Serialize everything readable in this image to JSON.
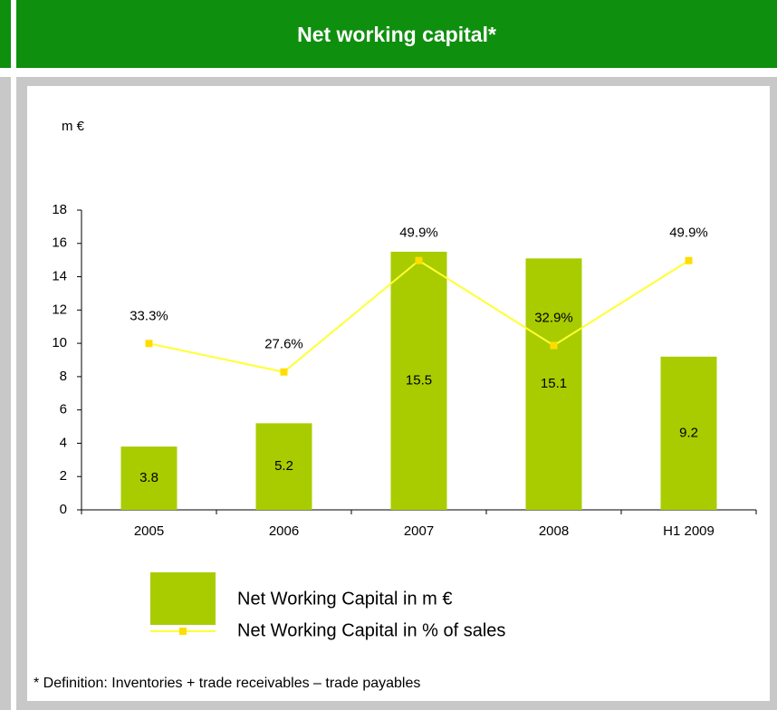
{
  "chart_data": {
    "type": "bar_line",
    "title": "Net working capital*",
    "unit_label": "m €",
    "footnote": "* Definition: Inventories + trade receivables – trade payables",
    "categories": [
      "2005",
      "2006",
      "2007",
      "2008",
      "H1 2009"
    ],
    "series": [
      {
        "name": "Net Working Capital in m €",
        "type": "bar",
        "color": "#a8cc00",
        "values": [
          3.8,
          5.2,
          15.5,
          15.1,
          9.2
        ]
      },
      {
        "name": "Net Working Capital in % of sales",
        "type": "line",
        "axis": "y2",
        "color": "#ffff33",
        "marker_color": "#ffdd00",
        "values": [
          33.3,
          27.6,
          49.9,
          32.9,
          49.9
        ],
        "value_labels": [
          "33.3%",
          "27.6%",
          "49.9%",
          "32.9%",
          "49.9%"
        ]
      }
    ],
    "ylim": [
      0,
      18
    ],
    "yticks": [
      0,
      2,
      4,
      6,
      8,
      10,
      12,
      14,
      16,
      18
    ],
    "y2lim": [
      0,
      60
    ]
  }
}
